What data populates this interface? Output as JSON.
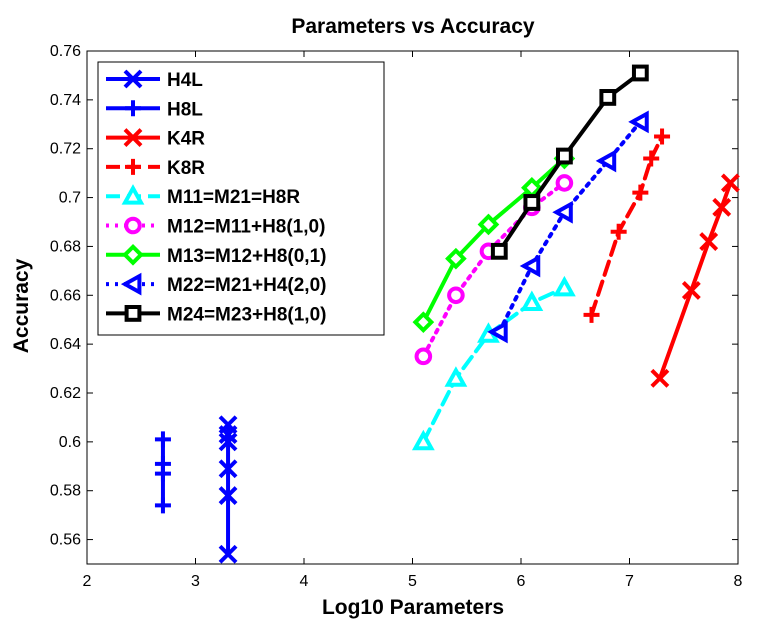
{
  "chart_data": {
    "type": "line",
    "title": "Parameters vs Accuracy",
    "xlabel": "Log10 Parameters",
    "ylabel": "Accuracy",
    "xlim": [
      2,
      8
    ],
    "ylim": [
      0.55,
      0.76
    ],
    "xticks": [
      2,
      3,
      4,
      5,
      6,
      7,
      8
    ],
    "xtick_labels": [
      "2",
      "3",
      "4",
      "5",
      "6",
      "7",
      "8"
    ],
    "yticks": [
      0.56,
      0.58,
      0.6,
      0.62,
      0.64,
      0.66,
      0.68,
      0.7,
      0.72,
      0.74,
      0.76
    ],
    "ytick_labels": [
      "0.56",
      "0.58",
      "0.6",
      "0.62",
      "0.64",
      "0.66",
      "0.68",
      "0.7",
      "0.72",
      "0.74",
      "0.76"
    ],
    "grid": false,
    "legend_position": "top-left",
    "series": [
      {
        "name": "H4L",
        "color": "#0000ff",
        "line_style": "solid",
        "marker": "x",
        "x": [
          3.3,
          3.3,
          3.3,
          3.3,
          3.3,
          3.3
        ],
        "y": [
          0.554,
          0.578,
          0.589,
          0.6,
          0.603,
          0.607
        ]
      },
      {
        "name": "H8L",
        "color": "#0000ff",
        "line_style": "solid",
        "marker": "plus",
        "x": [
          2.7,
          2.7,
          2.7,
          2.7
        ],
        "y": [
          0.574,
          0.587,
          0.591,
          0.601
        ]
      },
      {
        "name": "K4R",
        "color": "#ff0000",
        "line_style": "solid",
        "marker": "x",
        "x": [
          7.28,
          7.57,
          7.73,
          7.85,
          7.93
        ],
        "y": [
          0.626,
          0.662,
          0.682,
          0.696,
          0.706
        ]
      },
      {
        "name": "K8R",
        "color": "#ff0000",
        "line_style": "dashed",
        "marker": "plus",
        "x": [
          6.65,
          6.9,
          7.1,
          7.2,
          7.3
        ],
        "y": [
          0.652,
          0.686,
          0.702,
          0.716,
          0.725
        ]
      },
      {
        "name": "M11=M21=H8R",
        "color": "#00ffff",
        "line_style": "dashed",
        "marker": "triangle-up",
        "x": [
          5.1,
          5.4,
          5.7,
          6.1,
          6.4
        ],
        "y": [
          0.6,
          0.626,
          0.644,
          0.657,
          0.663
        ]
      },
      {
        "name": "M12=M11+H8(1,0)",
        "color": "#ff00ff",
        "line_style": "dotted",
        "marker": "circle",
        "x": [
          5.1,
          5.4,
          5.7,
          6.1,
          6.4
        ],
        "y": [
          0.635,
          0.66,
          0.678,
          0.696,
          0.706
        ]
      },
      {
        "name": "M13=M12+H8(0,1)",
        "color": "#00ff00",
        "line_style": "solid",
        "marker": "diamond",
        "x": [
          5.1,
          5.4,
          5.7,
          6.1,
          6.4
        ],
        "y": [
          0.649,
          0.675,
          0.689,
          0.704,
          0.716
        ]
      },
      {
        "name": "M22=M21+H4(2,0)",
        "color": "#0000ff",
        "line_style": "dotted",
        "marker": "triangle-left",
        "x": [
          5.8,
          6.1,
          6.4,
          6.8,
          7.1
        ],
        "y": [
          0.645,
          0.672,
          0.694,
          0.715,
          0.731
        ]
      },
      {
        "name": "M24=M23+H8(1,0)",
        "color": "#000000",
        "line_style": "solid",
        "marker": "square",
        "x": [
          5.8,
          6.1,
          6.4,
          6.8,
          7.1
        ],
        "y": [
          0.678,
          0.698,
          0.717,
          0.741,
          0.751
        ]
      }
    ]
  }
}
